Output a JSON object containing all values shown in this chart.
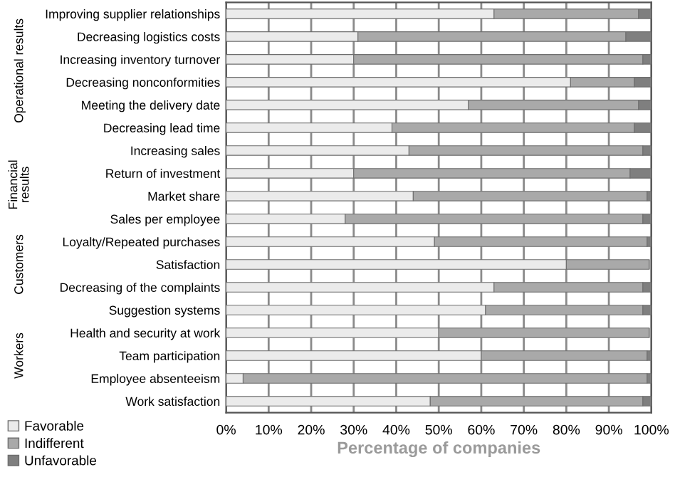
{
  "chart_data": {
    "type": "bar",
    "orientation": "horizontal",
    "stacked": true,
    "categories": [
      "Improving supplier relationships",
      "Decreasing logistics costs",
      "Increasing inventory turnover",
      "Decreasing nonconformities",
      "Meeting the delivery date",
      "Decreasing lead time",
      "Increasing sales",
      "Return of investment",
      "Market share",
      "Sales per employee",
      "Loyalty/Repeated purchases",
      "Satisfaction",
      "Decreasing of the complaints",
      "Suggestion systems",
      "Health and security at work",
      "Team participation",
      "Employee absenteeism",
      "Work satisfaction"
    ],
    "series": [
      {
        "name": "Favorable",
        "color": "#ebebeb",
        "values": [
          63,
          31,
          30,
          81,
          57,
          39,
          43,
          30,
          44,
          28,
          49,
          80,
          63,
          61,
          50,
          60,
          4,
          48
        ]
      },
      {
        "name": "Indifferent",
        "color": "#a9a9a9",
        "values": [
          34,
          63,
          68,
          15,
          40,
          57,
          55,
          65,
          55,
          70,
          50,
          19.5,
          35,
          37,
          49.5,
          39,
          95,
          50
        ]
      },
      {
        "name": "Unfavorable",
        "color": "#7f7f7f",
        "values": [
          3,
          6,
          2,
          4,
          3,
          4,
          2,
          5,
          1,
          2,
          1,
          null,
          2,
          2,
          null,
          1,
          1,
          2
        ]
      }
    ],
    "xlabel": "Percentage of companies",
    "xlim": [
      0,
      100
    ],
    "xticks": [
      {
        "value": 0,
        "label": "0%"
      },
      {
        "value": 10,
        "label": "10%"
      },
      {
        "value": 20,
        "label": "20%"
      },
      {
        "value": 30,
        "label": "30%"
      },
      {
        "value": 40,
        "label": "40%"
      },
      {
        "value": 50,
        "label": "50%"
      },
      {
        "value": 60,
        "label": "60%"
      },
      {
        "value": 70,
        "label": "70%"
      },
      {
        "value": 80,
        "label": "80%"
      },
      {
        "value": 90,
        "label": "90%"
      },
      {
        "value": 100,
        "label": "100%"
      }
    ],
    "annotations": [
      "Operational results",
      "Financial\nresults",
      "Customers",
      "Workers"
    ],
    "grid": "x",
    "legend": "bottom left"
  }
}
